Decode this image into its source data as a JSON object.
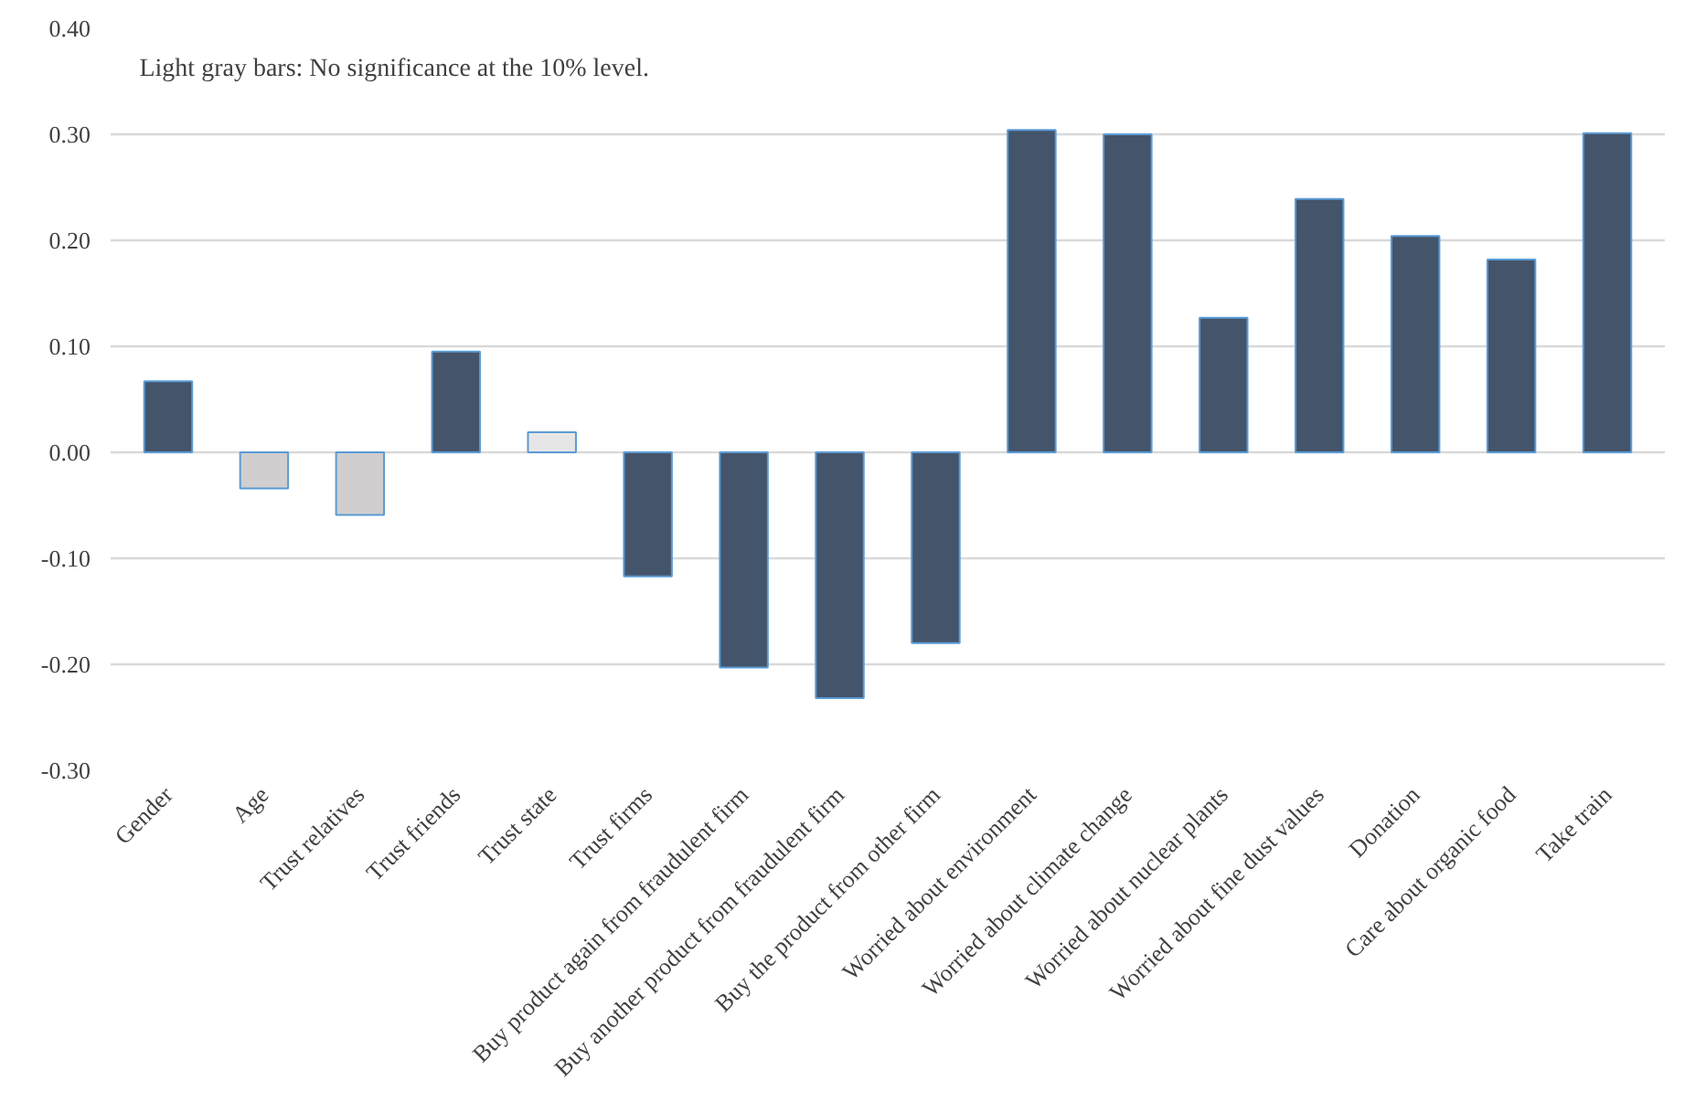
{
  "chart_data": {
    "type": "bar",
    "categories": [
      "Gender",
      "Age",
      "Trust relatives",
      "Trust friends",
      "Trust state",
      "Trust firms",
      "Buy product again from fraudulent firm",
      "Buy another product from fraudulent firm",
      "Buy the product from other firm",
      "Worried about environment",
      "Worried about climate change",
      "Worried about nuclear plants",
      "Worried about fine dust values",
      "Donation",
      "Care about organic food",
      "Take train"
    ],
    "values": [
      0.067,
      -0.034,
      -0.059,
      0.095,
      0.019,
      -0.117,
      -0.203,
      -0.232,
      -0.18,
      0.304,
      0.3,
      0.127,
      0.239,
      0.204,
      0.182,
      0.301
    ],
    "colors": [
      "#44546a",
      "#d0cece",
      "#d0cece",
      "#44546a",
      "#e7e6e6",
      "#44546a",
      "#44546a",
      "#44546a",
      "#44546a",
      "#44546a",
      "#44546a",
      "#44546a",
      "#44546a",
      "#44546a",
      "#44546a",
      "#44546a"
    ],
    "ylim": [
      -0.3,
      0.4
    ],
    "yticks": [
      {
        "value": -0.3,
        "label": "-0.30"
      },
      {
        "value": -0.2,
        "label": "-0.20"
      },
      {
        "value": -0.1,
        "label": "-0.10"
      },
      {
        "value": 0,
        "label": "0.00"
      },
      {
        "value": 0.1,
        "label": "0.10"
      },
      {
        "value": 0.2,
        "label": "0.20"
      },
      {
        "value": 0.3,
        "label": "0.30"
      },
      {
        "value": 0.4,
        "label": "0.40"
      }
    ],
    "grid": "y",
    "annotations": [
      "Light gray bars: No significance at the 10% level."
    ]
  }
}
